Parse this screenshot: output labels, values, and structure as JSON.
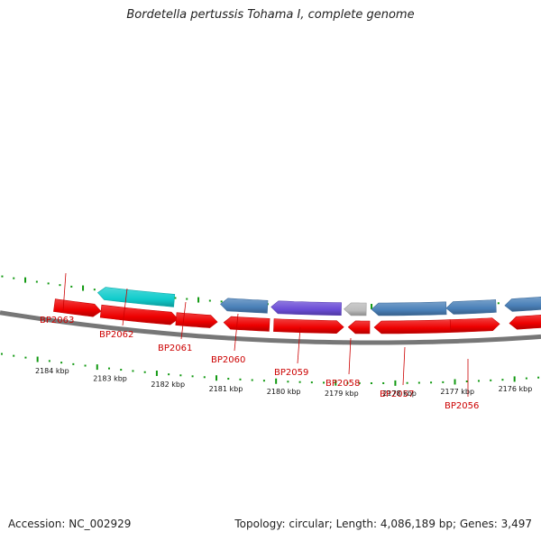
{
  "title": "Bordetella pertussis Tohama I, complete genome",
  "footer": {
    "accession": "Accession: NC_002929",
    "summary": "Topology: circular; Length: 4,086,189 bp; Genes: 3,497"
  },
  "colors": {
    "backbone": "#777777",
    "tick": "#119911",
    "label": "#cc0000",
    "red": "#ee0000",
    "cyan": "#11cccc",
    "steelblue": "#4a80b8",
    "purple": "#6a4cd6",
    "gray": "#bbbbbb"
  },
  "scale": [
    {
      "label": "2184 kbp"
    },
    {
      "label": "2183 kbp"
    },
    {
      "label": "2182 kbp"
    },
    {
      "label": "2181 kbp"
    },
    {
      "label": "2180 kbp"
    },
    {
      "label": "2179 kbp"
    },
    {
      "label": "2178 kbp"
    },
    {
      "label": "2177 kbp"
    },
    {
      "label": "2176 kbp"
    }
  ],
  "features": [
    {
      "track": "forward",
      "color": "red",
      "strand": "+"
    },
    {
      "track": "forward",
      "color": "red",
      "strand": "+"
    },
    {
      "track": "forward",
      "color": "red",
      "strand": "+"
    },
    {
      "track": "forward",
      "color": "red",
      "strand": "-"
    },
    {
      "track": "forward",
      "color": "red",
      "strand": "+"
    },
    {
      "track": "forward",
      "color": "red",
      "strand": "-"
    },
    {
      "track": "forward",
      "color": "red",
      "strand": "-"
    },
    {
      "track": "forward",
      "color": "red",
      "strand": "+"
    },
    {
      "track": "forward",
      "color": "red",
      "strand": "-"
    },
    {
      "track": "reverse",
      "color": "cyan",
      "strand": "-"
    },
    {
      "track": "reverse",
      "color": "steelblue",
      "strand": "-"
    },
    {
      "track": "reverse",
      "color": "purple",
      "strand": "-"
    },
    {
      "track": "reverse",
      "color": "gray",
      "strand": "-"
    },
    {
      "track": "reverse",
      "color": "steelblue",
      "strand": "-"
    },
    {
      "track": "reverse",
      "color": "steelblue",
      "strand": "-"
    },
    {
      "track": "reverse",
      "color": "steelblue",
      "strand": "-"
    }
  ],
  "gene_labels": [
    "BP2063",
    "BP2062",
    "BP2061",
    "BP2060",
    "BP2059",
    "BP2058",
    "BP2057",
    "BP2056"
  ]
}
